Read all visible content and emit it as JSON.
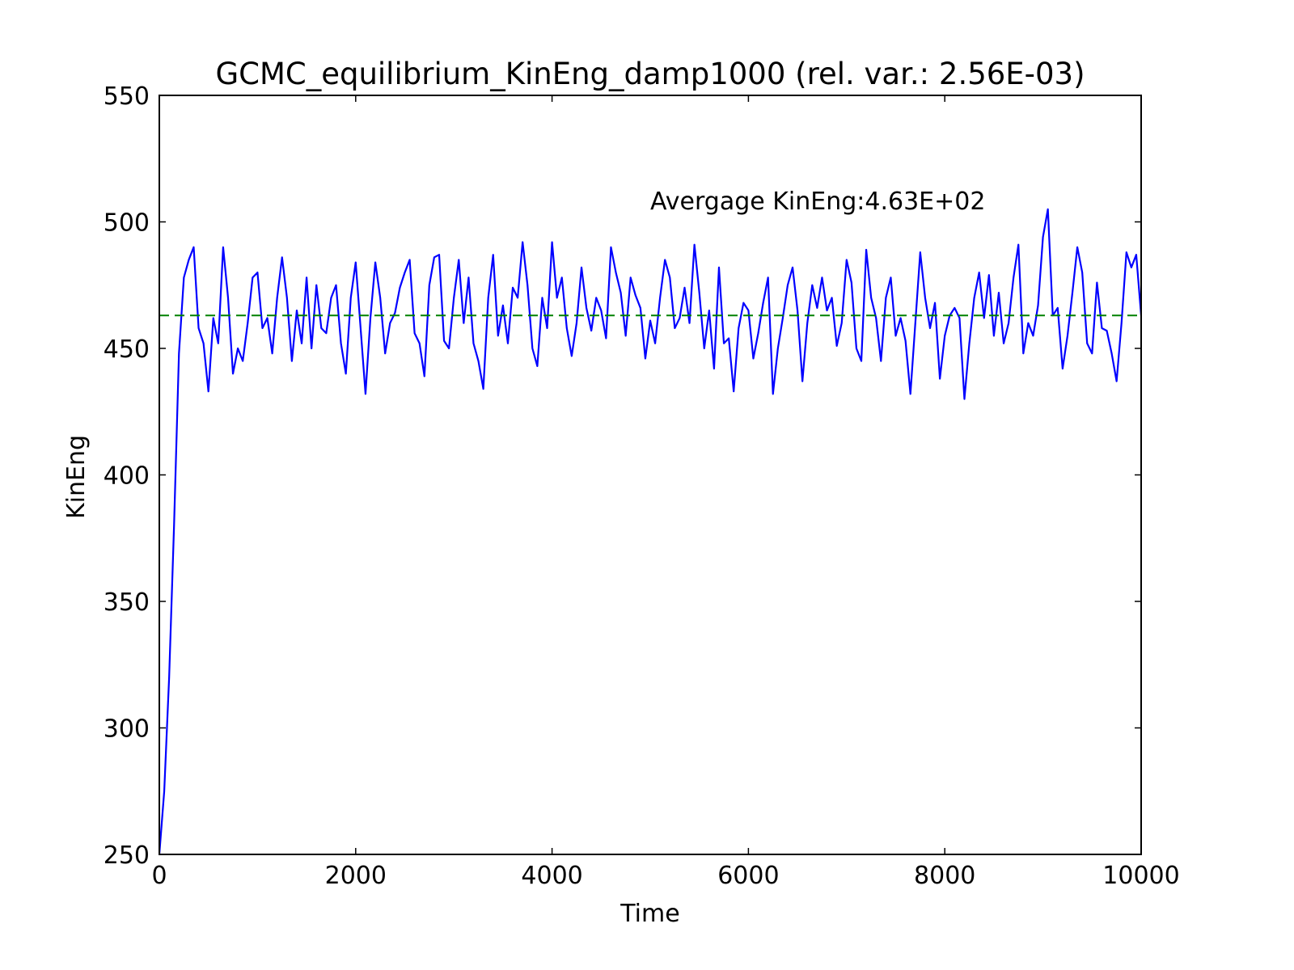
{
  "chart_data": {
    "type": "line",
    "title": "GCMC_equilibrium_KinEng_damp1000 (rel. var.: 2.56E-03)",
    "x_label": "Time",
    "y_label": "KinEng",
    "xlim": [
      0,
      10000
    ],
    "ylim": [
      250,
      550
    ],
    "xticks": [
      0,
      2000,
      4000,
      6000,
      8000,
      10000
    ],
    "yticks": [
      250,
      300,
      350,
      400,
      450,
      500,
      550
    ],
    "x": [
      0,
      50,
      100,
      150,
      200,
      250,
      300,
      350,
      400,
      450,
      500,
      550,
      600,
      650,
      700,
      750,
      800,
      850,
      900,
      950,
      1000,
      1050,
      1100,
      1150,
      1200,
      1250,
      1300,
      1350,
      1400,
      1450,
      1500,
      1550,
      1600,
      1650,
      1700,
      1750,
      1800,
      1850,
      1900,
      1950,
      2000,
      2050,
      2100,
      2150,
      2200,
      2250,
      2300,
      2350,
      2400,
      2450,
      2500,
      2550,
      2600,
      2650,
      2700,
      2750,
      2800,
      2850,
      2900,
      2950,
      3000,
      3050,
      3100,
      3150,
      3200,
      3250,
      3300,
      3350,
      3400,
      3450,
      3500,
      3550,
      3600,
      3650,
      3700,
      3750,
      3800,
      3850,
      3900,
      3950,
      4000,
      4050,
      4100,
      4150,
      4200,
      4250,
      4300,
      4350,
      4400,
      4450,
      4500,
      4550,
      4600,
      4650,
      4700,
      4750,
      4800,
      4850,
      4900,
      4950,
      5000,
      5050,
      5100,
      5150,
      5200,
      5250,
      5300,
      5350,
      5400,
      5450,
      5500,
      5550,
      5600,
      5650,
      5700,
      5750,
      5800,
      5850,
      5900,
      5950,
      6000,
      6050,
      6100,
      6150,
      6200,
      6250,
      6300,
      6350,
      6400,
      6450,
      6500,
      6550,
      6600,
      6650,
      6700,
      6750,
      6800,
      6850,
      6900,
      6950,
      7000,
      7050,
      7100,
      7150,
      7200,
      7250,
      7300,
      7350,
      7400,
      7450,
      7500,
      7550,
      7600,
      7650,
      7700,
      7750,
      7800,
      7850,
      7900,
      7950,
      8000,
      8050,
      8100,
      8150,
      8200,
      8250,
      8300,
      8350,
      8400,
      8450,
      8500,
      8550,
      8600,
      8650,
      8700,
      8750,
      8800,
      8850,
      8900,
      8950,
      9000,
      9050,
      9100,
      9150,
      9200,
      9250,
      9300,
      9350,
      9400,
      9450,
      9500,
      9550,
      9600,
      9650,
      9700,
      9750,
      9800,
      9850,
      9900,
      9950,
      10000
    ],
    "series": [
      {
        "color": "#0000ff",
        "values": [
          250,
          275,
          320,
          380,
          448,
          478,
          485,
          490,
          458,
          452,
          433,
          462,
          452,
          490,
          470,
          440,
          450,
          445,
          460,
          478,
          480,
          458,
          462,
          448,
          470,
          486,
          470,
          445,
          465,
          452,
          478,
          450,
          475,
          458,
          456,
          470,
          475,
          452,
          440,
          470,
          484,
          458,
          432,
          462,
          484,
          470,
          448,
          460,
          464,
          474,
          480,
          485,
          456,
          452,
          439,
          475,
          486,
          487,
          453,
          450,
          470,
          485,
          460,
          478,
          452,
          445,
          434,
          470,
          487,
          455,
          467,
          452,
          474,
          470,
          492,
          475,
          450,
          443,
          470,
          458,
          492,
          470,
          478,
          458,
          447,
          460,
          482,
          466,
          457,
          470,
          465,
          454,
          490,
          480,
          472,
          455,
          478,
          471,
          466,
          446,
          461,
          452,
          470,
          485,
          478,
          458,
          462,
          474,
          460,
          491,
          472,
          450,
          465,
          442,
          482,
          452,
          454,
          433,
          458,
          468,
          465,
          446,
          456,
          468,
          478,
          432,
          450,
          462,
          475,
          482,
          465,
          437,
          460,
          475,
          466,
          478,
          465,
          470,
          451,
          460,
          485,
          476,
          450,
          445,
          489,
          470,
          462,
          445,
          470,
          478,
          455,
          462,
          453,
          432,
          460,
          488,
          470,
          458,
          468,
          438,
          455,
          463,
          466,
          462,
          430,
          452,
          470,
          480,
          462,
          479,
          455,
          472,
          452,
          460,
          478,
          491,
          448,
          460,
          455,
          467,
          494,
          505,
          463,
          466,
          442,
          455,
          472,
          490,
          480,
          452,
          448,
          476,
          458,
          457,
          448,
          437,
          460,
          488,
          482,
          487,
          463
        ]
      }
    ],
    "hlines": [
      {
        "y": 463,
        "color": "#008000",
        "style": "dashed"
      }
    ],
    "annotations": [
      {
        "text": "Avergage KinEng:4.63E+02",
        "x": 5000,
        "y": 505,
        "color": "#008000"
      }
    ]
  }
}
